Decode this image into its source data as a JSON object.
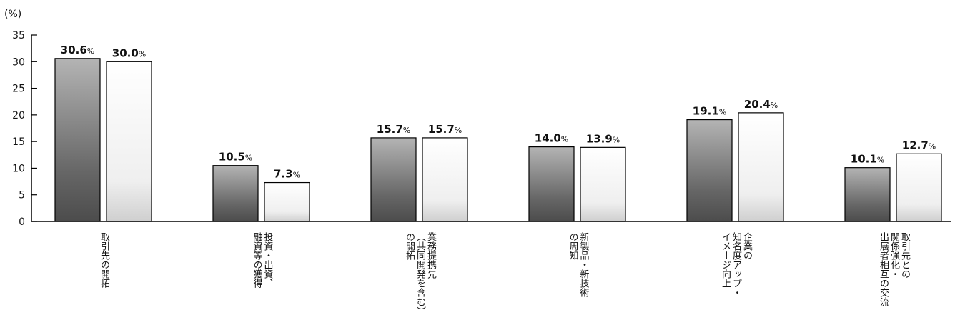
{
  "chart_data": {
    "type": "bar",
    "unit_label": "(%)",
    "value_suffix": "%",
    "ylim": [
      0,
      35
    ],
    "yticks": [
      0,
      5,
      10,
      15,
      20,
      25,
      30,
      35
    ],
    "categories": [
      {
        "lines": [
          "取引先の開拓"
        ]
      },
      {
        "lines": [
          "投資・出資、",
          "融資等の獲得"
        ]
      },
      {
        "lines": [
          "業務提携先",
          "（共同開発を含む）",
          "の開拓"
        ]
      },
      {
        "lines": [
          "新製品・新技術",
          "の周知"
        ]
      },
      {
        "lines": [
          "企業の",
          "知名度アップ・",
          "イメージ向上"
        ]
      },
      {
        "lines": [
          "取引先との",
          "関係強化・",
          "出展者相互の交流"
        ]
      }
    ],
    "series": [
      {
        "values": [
          30.6,
          10.5,
          15.7,
          14.0,
          19.1,
          10.1
        ],
        "labels": [
          "30.6",
          "10.5",
          "15.7",
          "14.0",
          "19.1",
          "10.1"
        ],
        "color_top": "#b4b4b4",
        "color_bottom": "#4c4c4c"
      },
      {
        "values": [
          30.0,
          7.3,
          15.7,
          13.9,
          20.4,
          12.7
        ],
        "labels": [
          "30.0",
          "7.3",
          "15.7",
          "13.9",
          "20.4",
          "12.7"
        ],
        "color_top": "#ffffff",
        "color_bottom": "#cfcfcf"
      }
    ]
  }
}
